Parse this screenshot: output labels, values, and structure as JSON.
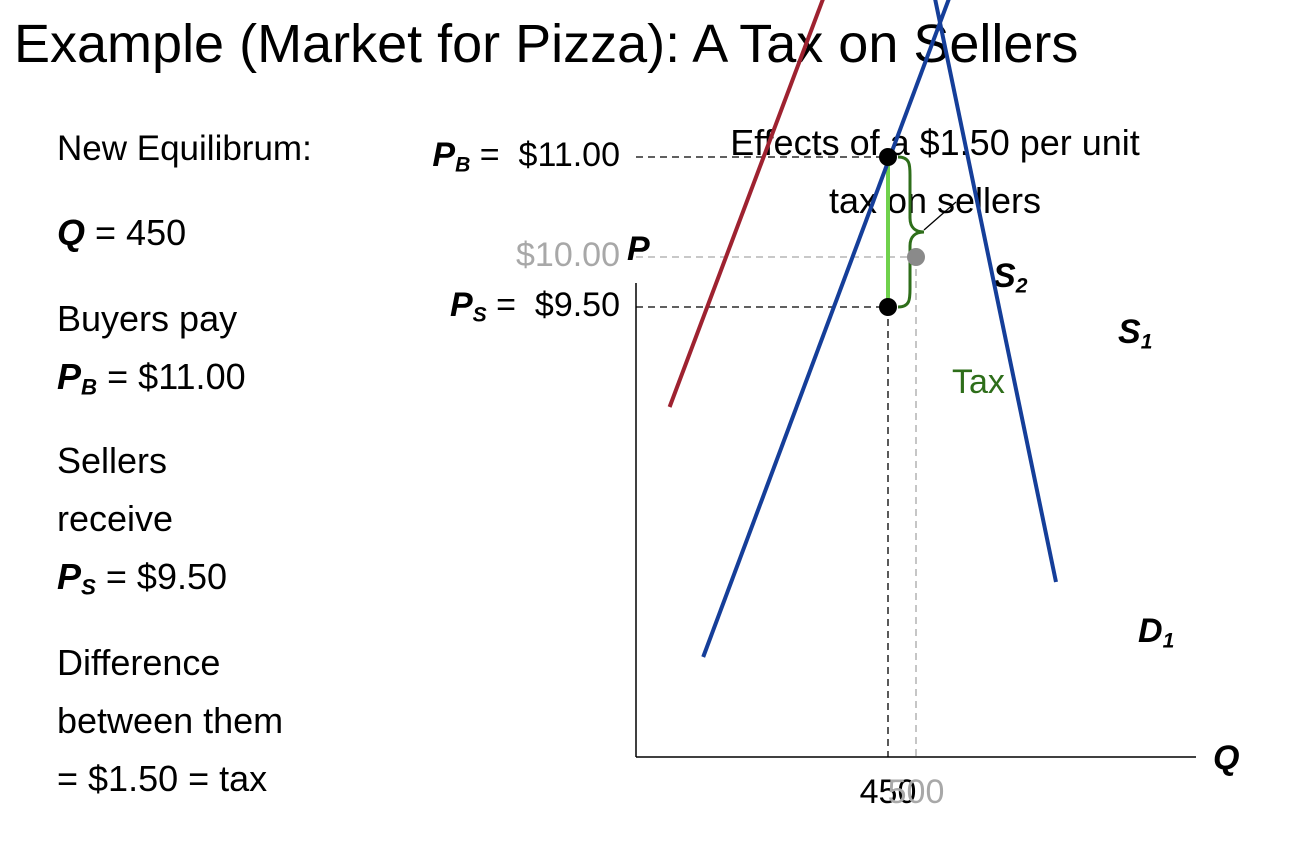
{
  "colors": {
    "title": "#5B8FD0",
    "accent_orange": "#D9731E",
    "supply_demand_blue": "#153E99",
    "supply_tax_red": "#9E2230",
    "tax_green": "#2E6E1A",
    "tax_bar_green": "#6FD14C",
    "faded_gray": "#A8A8A8",
    "point_gray": "#8A8A8A"
  },
  "slide": {
    "title": "Example (Market for Pizza): A Tax on Sellers",
    "left_panel": {
      "heading": "New Equilibrum:",
      "q_label": "Q",
      "q_value": " = 450",
      "buyers_line1": "Buyers pay",
      "pb_label": "P",
      "pb_sub": "B",
      "pb_value": " = $11.00",
      "sellers_line1": "Sellers",
      "sellers_line2": "receive",
      "ps_label": "P",
      "ps_sub": "S",
      "ps_value": " = $9.50",
      "diff_line1": "Difference",
      "diff_line2": "between them",
      "diff_line3": " = $1.50 = tax"
    }
  },
  "chart_data": {
    "type": "line",
    "title": "Effects of a $1.50 per unit tax on sellers",
    "title_line1": "Effects of a $1.50 per unit",
    "title_line2": "tax on sellers",
    "xlabel": "Q",
    "ylabel": "P",
    "xlim": [
      0,
      850
    ],
    "ylim": [
      5,
      21
    ],
    "grid": false,
    "series": [
      {
        "name": "D",
        "sub": "1",
        "color": "#153E99",
        "x": [
          250,
          750
        ],
        "y": [
          20.25,
          6.75
        ]
      },
      {
        "name": "S",
        "sub": "1",
        "color": "#153E99",
        "x": [
          120,
          720
        ],
        "y": [
          6.0,
          15.0
        ]
      },
      {
        "name": "S",
        "sub": "2",
        "color": "#9E2230",
        "x": [
          60,
          530
        ],
        "y": [
          8.5,
          15.5
        ]
      }
    ],
    "points": [
      {
        "x": 450,
        "y": 11.0,
        "color": "#000000"
      },
      {
        "x": 450,
        "y": 9.5,
        "color": "#000000"
      },
      {
        "x": 500,
        "y": 10.0,
        "color": "#8A8A8A"
      }
    ],
    "reference_lines": [
      {
        "type": "h",
        "y": 11.0,
        "to_x": 450,
        "color": "#000000"
      },
      {
        "type": "h",
        "y": 10.0,
        "to_x": 500,
        "color": "#A8A8A8"
      },
      {
        "type": "h",
        "y": 9.5,
        "to_x": 450,
        "color": "#000000"
      },
      {
        "type": "v",
        "x": 450,
        "from_y": 9.5,
        "color": "#000000"
      },
      {
        "type": "v",
        "x": 500,
        "from_y": 10.0,
        "color": "#A8A8A8"
      }
    ],
    "tax_bar": {
      "x": 450,
      "y1": 9.5,
      "y2": 11.0
    },
    "tax_label": "Tax",
    "y_tick_labels": [
      {
        "prefix": "P",
        "sub": "B",
        "suffix": " =  ",
        "value_text": "$11.00",
        "value": 11.0
      },
      {
        "prefix": "",
        "sub": "",
        "suffix": "",
        "value_text": "$10.00",
        "value": 10.0,
        "faded": true
      },
      {
        "prefix": "P",
        "sub": "S",
        "suffix": " =  ",
        "value_text": "$9.50",
        "value": 9.5
      }
    ],
    "x_tick_labels": [
      {
        "text": "450",
        "value": 450
      },
      {
        "text": "500",
        "value": 500,
        "faded": true
      }
    ]
  }
}
